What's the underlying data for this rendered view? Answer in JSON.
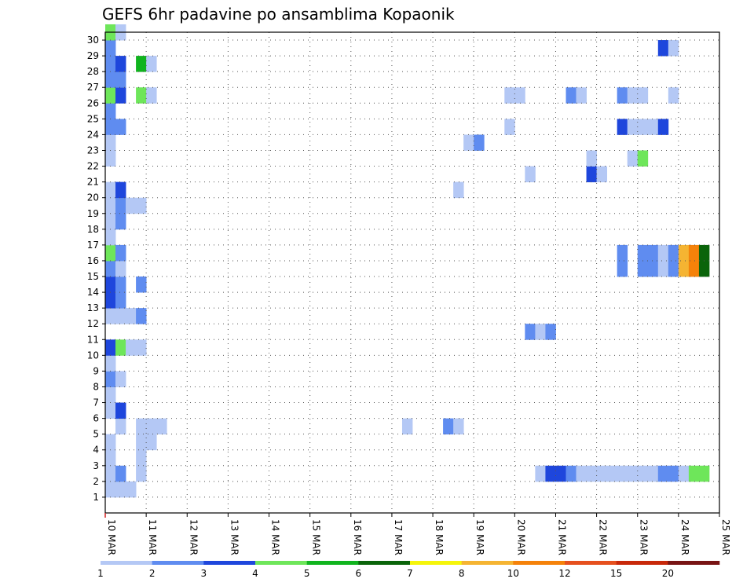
{
  "chart_data": {
    "type": "heatmap",
    "title": "GEFS 6hr padavine po ansamblima Kopaonik",
    "xlabel": "",
    "ylabel": "",
    "x_tick_labels": [
      "10 MAR",
      "11 MAR",
      "12 MAR",
      "13 MAR",
      "14 MAR",
      "15 MAR",
      "16 MAR",
      "17 MAR",
      "18 MAR",
      "19 MAR",
      "20 MAR",
      "21 MAR",
      "22 MAR",
      "23 MAR",
      "24 MAR",
      "25 MAR"
    ],
    "xlim_days": [
      0,
      15
    ],
    "step_hours": 6,
    "y_tick_labels": [
      "1",
      "2",
      "3",
      "4",
      "5",
      "6",
      "7",
      "8",
      "9",
      "10",
      "11",
      "12",
      "13",
      "14",
      "15",
      "16",
      "17",
      "18",
      "19",
      "20",
      "21",
      "22",
      "23",
      "24",
      "25",
      "26",
      "27",
      "28",
      "29",
      "30"
    ],
    "ylim": [
      0,
      30
    ],
    "grid": true,
    "colorbar": {
      "levels": [
        "1",
        "2",
        "3",
        "4",
        "5",
        "6",
        "7",
        "8",
        "10",
        "12",
        "15",
        "20"
      ],
      "colors": [
        "#b4c8f5",
        "#5f8cf0",
        "#1e46dc",
        "#6ee65a",
        "#10b41e",
        "#0a640a",
        "#f5f50a",
        "#f5b432",
        "#f5820a",
        "#e6501e",
        "#c8280a",
        "#781414"
      ]
    },
    "cells": [
      {
        "m": 1,
        "d": 0.25,
        "c": 1
      },
      {
        "m": 1,
        "d": 0.5,
        "c": 1
      },
      {
        "m": 1,
        "d": 0.75,
        "c": 1
      },
      {
        "m": 2,
        "d": 0.25,
        "c": 1
      },
      {
        "m": 2,
        "d": 0.5,
        "c": 2
      },
      {
        "m": 2,
        "d": 1.0,
        "c": 1
      },
      {
        "m": 2,
        "d": 10.75,
        "c": 1
      },
      {
        "m": 2,
        "d": 11.0,
        "c": 3
      },
      {
        "m": 2,
        "d": 11.25,
        "c": 3
      },
      {
        "m": 2,
        "d": 11.5,
        "c": 2
      },
      {
        "m": 2,
        "d": 11.75,
        "c": 1
      },
      {
        "m": 2,
        "d": 12.0,
        "c": 1
      },
      {
        "m": 2,
        "d": 12.25,
        "c": 1
      },
      {
        "m": 2,
        "d": 12.5,
        "c": 1
      },
      {
        "m": 2,
        "d": 12.75,
        "c": 1
      },
      {
        "m": 2,
        "d": 13.0,
        "c": 1
      },
      {
        "m": 2,
        "d": 13.25,
        "c": 1
      },
      {
        "m": 2,
        "d": 13.5,
        "c": 1
      },
      {
        "m": 2,
        "d": 13.75,
        "c": 2
      },
      {
        "m": 2,
        "d": 14.0,
        "c": 2
      },
      {
        "m": 2,
        "d": 14.25,
        "c": 1
      },
      {
        "m": 2,
        "d": 14.5,
        "c": 4
      },
      {
        "m": 2,
        "d": 14.75,
        "c": 4
      },
      {
        "m": 3,
        "d": 0.25,
        "c": 1
      },
      {
        "m": 3,
        "d": 1.0,
        "c": 1
      },
      {
        "m": 4,
        "d": 0.25,
        "c": 1
      },
      {
        "m": 4,
        "d": 1.0,
        "c": 1
      },
      {
        "m": 4,
        "d": 1.25,
        "c": 1
      },
      {
        "m": 5,
        "d": 0.5,
        "c": 1
      },
      {
        "m": 5,
        "d": 1.0,
        "c": 1
      },
      {
        "m": 5,
        "d": 1.25,
        "c": 1
      },
      {
        "m": 5,
        "d": 1.5,
        "c": 1
      },
      {
        "m": 5,
        "d": 7.5,
        "c": 1
      },
      {
        "m": 5,
        "d": 8.5,
        "c": 2
      },
      {
        "m": 5,
        "d": 8.75,
        "c": 1
      },
      {
        "m": 6,
        "d": 0.25,
        "c": 1
      },
      {
        "m": 6,
        "d": 0.5,
        "c": 3
      },
      {
        "m": 7,
        "d": 0.25,
        "c": 1
      },
      {
        "m": 8,
        "d": 0.25,
        "c": 2
      },
      {
        "m": 8,
        "d": 0.5,
        "c": 1
      },
      {
        "m": 9,
        "d": 0.25,
        "c": 1
      },
      {
        "m": 10,
        "d": 0.25,
        "c": 3
      },
      {
        "m": 10,
        "d": 0.5,
        "c": 4
      },
      {
        "m": 10,
        "d": 0.75,
        "c": 1
      },
      {
        "m": 10,
        "d": 1.0,
        "c": 1
      },
      {
        "m": 11,
        "d": 10.5,
        "c": 2
      },
      {
        "m": 11,
        "d": 10.75,
        "c": 1
      },
      {
        "m": 11,
        "d": 11.0,
        "c": 2
      },
      {
        "m": 12,
        "d": 0.25,
        "c": 1
      },
      {
        "m": 12,
        "d": 0.5,
        "c": 1
      },
      {
        "m": 12,
        "d": 0.75,
        "c": 1
      },
      {
        "m": 12,
        "d": 1.0,
        "c": 2
      },
      {
        "m": 13,
        "d": 0.25,
        "c": 3
      },
      {
        "m": 13,
        "d": 0.5,
        "c": 2
      },
      {
        "m": 14,
        "d": 0.25,
        "c": 3
      },
      {
        "m": 14,
        "d": 0.5,
        "c": 2
      },
      {
        "m": 14,
        "d": 1.0,
        "c": 2
      },
      {
        "m": 15,
        "d": 0.25,
        "c": 2
      },
      {
        "m": 15,
        "d": 0.5,
        "c": 1
      },
      {
        "m": 15,
        "d": 12.75,
        "c": 2
      },
      {
        "m": 15,
        "d": 13.25,
        "c": 2
      },
      {
        "m": 15,
        "d": 13.5,
        "c": 2
      },
      {
        "m": 15,
        "d": 13.75,
        "c": 1
      },
      {
        "m": 15,
        "d": 14.0,
        "c": 2
      },
      {
        "m": 15,
        "d": 14.25,
        "c": 8
      },
      {
        "m": 15,
        "d": 14.5,
        "c": 9
      },
      {
        "m": 15,
        "d": 14.75,
        "c": 6
      },
      {
        "m": 16,
        "d": 0.25,
        "c": 4
      },
      {
        "m": 16,
        "d": 0.5,
        "c": 2
      },
      {
        "m": 16,
        "d": 12.75,
        "c": 2
      },
      {
        "m": 16,
        "d": 13.25,
        "c": 2
      },
      {
        "m": 16,
        "d": 13.5,
        "c": 2
      },
      {
        "m": 16,
        "d": 13.75,
        "c": 1
      },
      {
        "m": 16,
        "d": 14.0,
        "c": 2
      },
      {
        "m": 16,
        "d": 14.25,
        "c": 8
      },
      {
        "m": 16,
        "d": 14.5,
        "c": 9
      },
      {
        "m": 16,
        "d": 14.75,
        "c": 6
      },
      {
        "m": 17,
        "d": 0.25,
        "c": 1
      },
      {
        "m": 18,
        "d": 0.25,
        "c": 1
      },
      {
        "m": 18,
        "d": 0.5,
        "c": 2
      },
      {
        "m": 19,
        "d": 0.25,
        "c": 1
      },
      {
        "m": 19,
        "d": 0.5,
        "c": 2
      },
      {
        "m": 19,
        "d": 0.75,
        "c": 1
      },
      {
        "m": 19,
        "d": 1.0,
        "c": 1
      },
      {
        "m": 20,
        "d": 0.25,
        "c": 1
      },
      {
        "m": 20,
        "d": 0.5,
        "c": 3
      },
      {
        "m": 20,
        "d": 8.75,
        "c": 1
      },
      {
        "m": 21,
        "d": 10.5,
        "c": 1
      },
      {
        "m": 21,
        "d": 12.0,
        "c": 3
      },
      {
        "m": 21,
        "d": 12.25,
        "c": 1
      },
      {
        "m": 22,
        "d": 0.25,
        "c": 1
      },
      {
        "m": 22,
        "d": 12.0,
        "c": 1
      },
      {
        "m": 22,
        "d": 13.0,
        "c": 1
      },
      {
        "m": 22,
        "d": 13.25,
        "c": 4
      },
      {
        "m": 23,
        "d": 0.25,
        "c": 1
      },
      {
        "m": 23,
        "d": 9.0,
        "c": 1
      },
      {
        "m": 23,
        "d": 9.25,
        "c": 2
      },
      {
        "m": 24,
        "d": 0.25,
        "c": 2
      },
      {
        "m": 24,
        "d": 0.5,
        "c": 2
      },
      {
        "m": 24,
        "d": 10.0,
        "c": 1
      },
      {
        "m": 24,
        "d": 12.75,
        "c": 3
      },
      {
        "m": 24,
        "d": 13.0,
        "c": 1
      },
      {
        "m": 24,
        "d": 13.25,
        "c": 1
      },
      {
        "m": 24,
        "d": 13.5,
        "c": 1
      },
      {
        "m": 24,
        "d": 13.75,
        "c": 3
      },
      {
        "m": 25,
        "d": 0.25,
        "c": 2
      },
      {
        "m": 26,
        "d": 0.25,
        "c": 4
      },
      {
        "m": 26,
        "d": 0.5,
        "c": 3
      },
      {
        "m": 26,
        "d": 1.0,
        "c": 4
      },
      {
        "m": 26,
        "d": 1.25,
        "c": 1
      },
      {
        "m": 26,
        "d": 10.0,
        "c": 1
      },
      {
        "m": 26,
        "d": 10.25,
        "c": 1
      },
      {
        "m": 26,
        "d": 11.5,
        "c": 2
      },
      {
        "m": 26,
        "d": 11.75,
        "c": 1
      },
      {
        "m": 26,
        "d": 12.75,
        "c": 2
      },
      {
        "m": 26,
        "d": 13.0,
        "c": 1
      },
      {
        "m": 26,
        "d": 13.25,
        "c": 1
      },
      {
        "m": 26,
        "d": 14.0,
        "c": 1
      },
      {
        "m": 27,
        "d": 0.25,
        "c": 2
      },
      {
        "m": 27,
        "d": 0.5,
        "c": 2
      },
      {
        "m": 28,
        "d": 0.25,
        "c": 2
      },
      {
        "m": 28,
        "d": 0.5,
        "c": 3
      },
      {
        "m": 28,
        "d": 1.0,
        "c": 5
      },
      {
        "m": 28,
        "d": 1.25,
        "c": 1
      },
      {
        "m": 29,
        "d": 0.25,
        "c": 2
      },
      {
        "m": 29,
        "d": 13.75,
        "c": 3
      },
      {
        "m": 29,
        "d": 14.0,
        "c": 1
      },
      {
        "m": 30,
        "d": 0.25,
        "c": 4
      },
      {
        "m": 30,
        "d": 0.5,
        "c": 1
      }
    ]
  }
}
